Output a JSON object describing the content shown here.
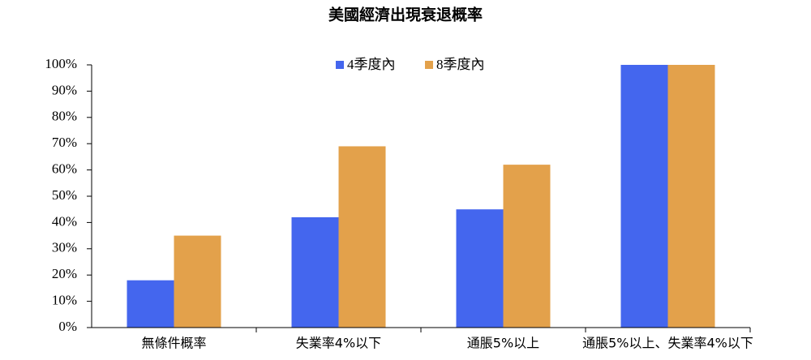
{
  "chart_data": {
    "type": "bar",
    "title": "美國經濟出現衰退概率",
    "categories": [
      "無條件概率",
      "失業率4%以下",
      "通脹5%以上",
      "通脹5%以上、失業率4%以下"
    ],
    "series": [
      {
        "name": "4季度內",
        "color": "#4466ee",
        "values": [
          18,
          42,
          45,
          100
        ]
      },
      {
        "name": "8季度內",
        "color": "#e3a14b",
        "values": [
          35,
          69,
          62,
          100
        ]
      }
    ],
    "ylim": [
      0,
      100
    ],
    "yticks": [
      {
        "value": 0,
        "label": "0%"
      },
      {
        "value": 10,
        "label": "10%"
      },
      {
        "value": 20,
        "label": "20%"
      },
      {
        "value": 30,
        "label": "30%"
      },
      {
        "value": 40,
        "label": "40%"
      },
      {
        "value": 50,
        "label": "50%"
      },
      {
        "value": 60,
        "label": "60%"
      },
      {
        "value": 70,
        "label": "70%"
      },
      {
        "value": 80,
        "label": "80%"
      },
      {
        "value": 90,
        "label": "90%"
      },
      {
        "value": 100,
        "label": "100%"
      }
    ],
    "legend": "top"
  }
}
